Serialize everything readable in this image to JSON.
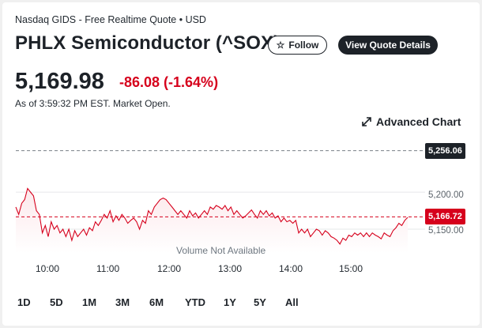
{
  "header": {
    "exchange": "Nasdaq GIDS - Free Realtime Quote • USD",
    "title": "PHLX Semiconductor (^SOX)",
    "follow_label": "Follow",
    "view_quote_label": "View Quote Details"
  },
  "quote": {
    "price": "5,169.98",
    "change": "-86.08 (-1.64%)",
    "as_of": "As of 3:59:32 PM EST. Market Open.",
    "change_color": "#d6001c"
  },
  "advanced_chart_label": "Advanced Chart",
  "volume_note": "Volume Not Available",
  "chart_data": {
    "type": "line",
    "x_ticks": [
      "10:00",
      "11:00",
      "12:00",
      "13:00",
      "14:00",
      "15:00"
    ],
    "y_ticks": [
      "5,200.00",
      "5,150.00"
    ],
    "prev_close": "5,256.06",
    "current_tag": "5,166.72",
    "ylim": [
      5118,
      5278
    ],
    "series": [
      {
        "values": [
          5180,
          5170,
          5185,
          5190,
          5205,
          5200,
          5195,
          5175,
          5170,
          5145,
          5155,
          5140,
          5160,
          5150,
          5155,
          5145,
          5150,
          5140,
          5150,
          5135,
          5148,
          5140,
          5145,
          5150,
          5142,
          5152,
          5148,
          5160,
          5155,
          5162,
          5170,
          5165,
          5175,
          5160,
          5168,
          5162,
          5170,
          5165,
          5158,
          5162,
          5165,
          5160,
          5150,
          5162,
          5158,
          5175,
          5170,
          5180,
          5185,
          5190,
          5192,
          5190,
          5185,
          5180,
          5175,
          5170,
          5175,
          5170,
          5165,
          5175,
          5168,
          5172,
          5165,
          5170,
          5175,
          5170,
          5180,
          5177,
          5182,
          5180,
          5177,
          5182,
          5175,
          5180,
          5170,
          5175,
          5170,
          5165,
          5168,
          5172,
          5176,
          5170,
          5165,
          5175,
          5170,
          5175,
          5168,
          5172,
          5165,
          5168,
          5160,
          5165,
          5160,
          5162,
          5158,
          5162,
          5145,
          5150,
          5145,
          5150,
          5140,
          5145,
          5150,
          5148,
          5142,
          5148,
          5145,
          5140,
          5138,
          5135,
          5130,
          5138,
          5135,
          5142,
          5140,
          5145,
          5142,
          5145,
          5140,
          5145,
          5140,
          5145,
          5142,
          5140,
          5137,
          5145,
          5142,
          5140,
          5148,
          5152,
          5158,
          5155,
          5162,
          5166
        ]
      }
    ],
    "line_color": "#d6001c",
    "fill_color": "#fce8eb"
  },
  "ranges": [
    "1D",
    "5D",
    "1M",
    "3M",
    "6M",
    "YTD",
    "1Y",
    "5Y",
    "All"
  ]
}
